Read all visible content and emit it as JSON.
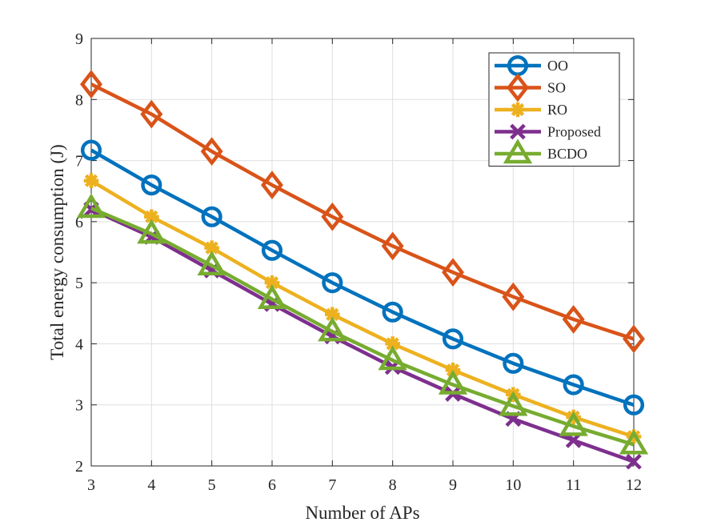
{
  "chart_data": {
    "type": "line",
    "title": "",
    "xlabel": "Number of APs",
    "ylabel": "Total energy consumption (J)",
    "xlim": [
      3,
      12
    ],
    "ylim": [
      2,
      9
    ],
    "xticks": [
      3,
      4,
      5,
      6,
      7,
      8,
      9,
      10,
      11,
      12
    ],
    "yticks": [
      2,
      3,
      4,
      5,
      6,
      7,
      8,
      9
    ],
    "grid": true,
    "legend_position": "top-right",
    "x": [
      3,
      4,
      5,
      6,
      7,
      8,
      9,
      10,
      11,
      12
    ],
    "series": [
      {
        "name": "OO",
        "color": "#0072BD",
        "marker": "circle",
        "values": [
          7.17,
          6.6,
          6.08,
          5.53,
          5.0,
          4.52,
          4.08,
          3.68,
          3.33,
          3.0
        ]
      },
      {
        "name": "SO",
        "color": "#D95319",
        "marker": "diamond",
        "values": [
          8.25,
          7.76,
          7.15,
          6.6,
          6.08,
          5.6,
          5.17,
          4.77,
          4.4,
          4.08
        ]
      },
      {
        "name": "RO",
        "color": "#EDB120",
        "marker": "asterisk",
        "values": [
          6.67,
          6.08,
          5.57,
          5.0,
          4.48,
          4.0,
          3.57,
          3.17,
          2.8,
          2.48
        ]
      },
      {
        "name": "Proposed",
        "color": "#7E2F8E",
        "marker": "x",
        "values": [
          6.2,
          5.75,
          5.2,
          4.65,
          4.12,
          3.62,
          3.18,
          2.77,
          2.42,
          2.07
        ]
      },
      {
        "name": "BCDO",
        "color": "#77AC30",
        "marker": "triangle",
        "values": [
          6.22,
          5.8,
          5.28,
          4.73,
          4.2,
          3.73,
          3.33,
          2.98,
          2.65,
          2.35
        ]
      }
    ]
  }
}
